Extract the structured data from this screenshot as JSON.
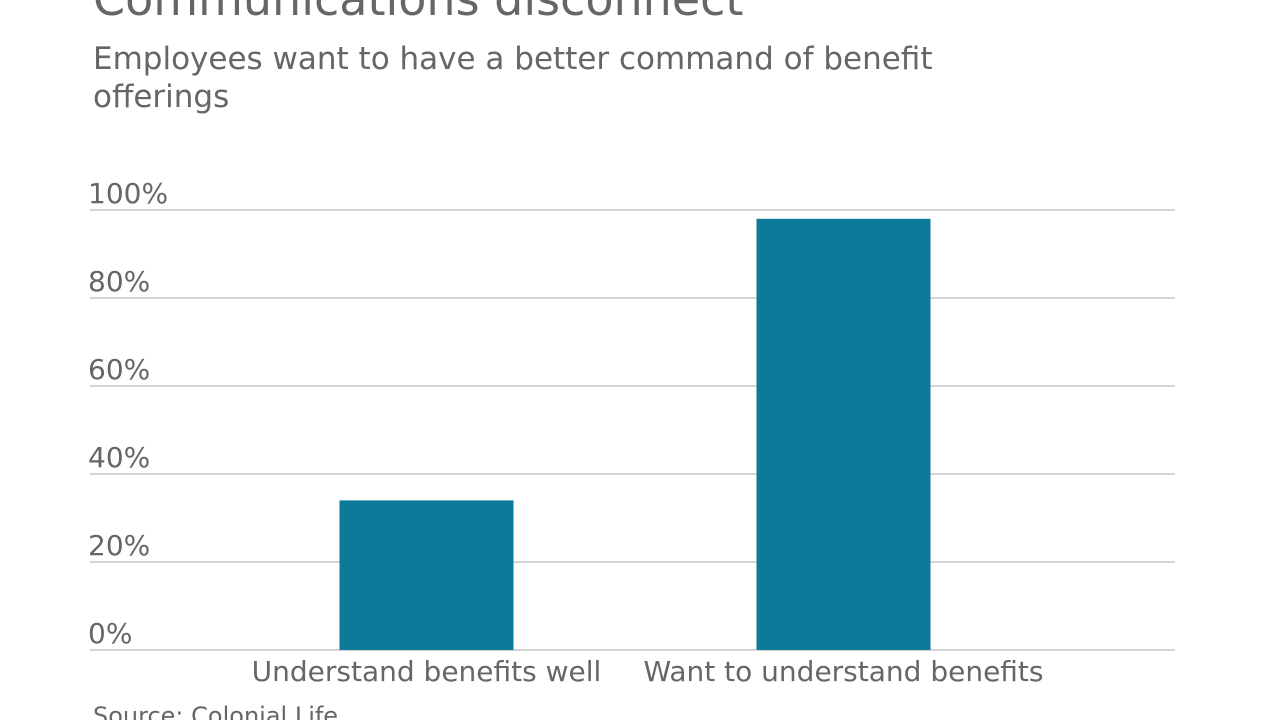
{
  "chart_data": {
    "type": "bar",
    "title": "Communications disconnect",
    "subtitle": "Employees want to have a better command of benefit offerings",
    "source": "Source: Colonial Life",
    "categories": [
      "Understand benefits well",
      "Want to understand benefits"
    ],
    "values": [
      34,
      98
    ],
    "color": "#0e7a99",
    "ylim": [
      0,
      100
    ],
    "yticks": [
      {
        "value": 0,
        "label": "0%"
      },
      {
        "value": 20,
        "label": "20%"
      },
      {
        "value": 40,
        "label": "40%"
      },
      {
        "value": 60,
        "label": "60%"
      },
      {
        "value": 80,
        "label": "80%"
      },
      {
        "value": 100,
        "label": "100%"
      }
    ],
    "grid": true
  }
}
